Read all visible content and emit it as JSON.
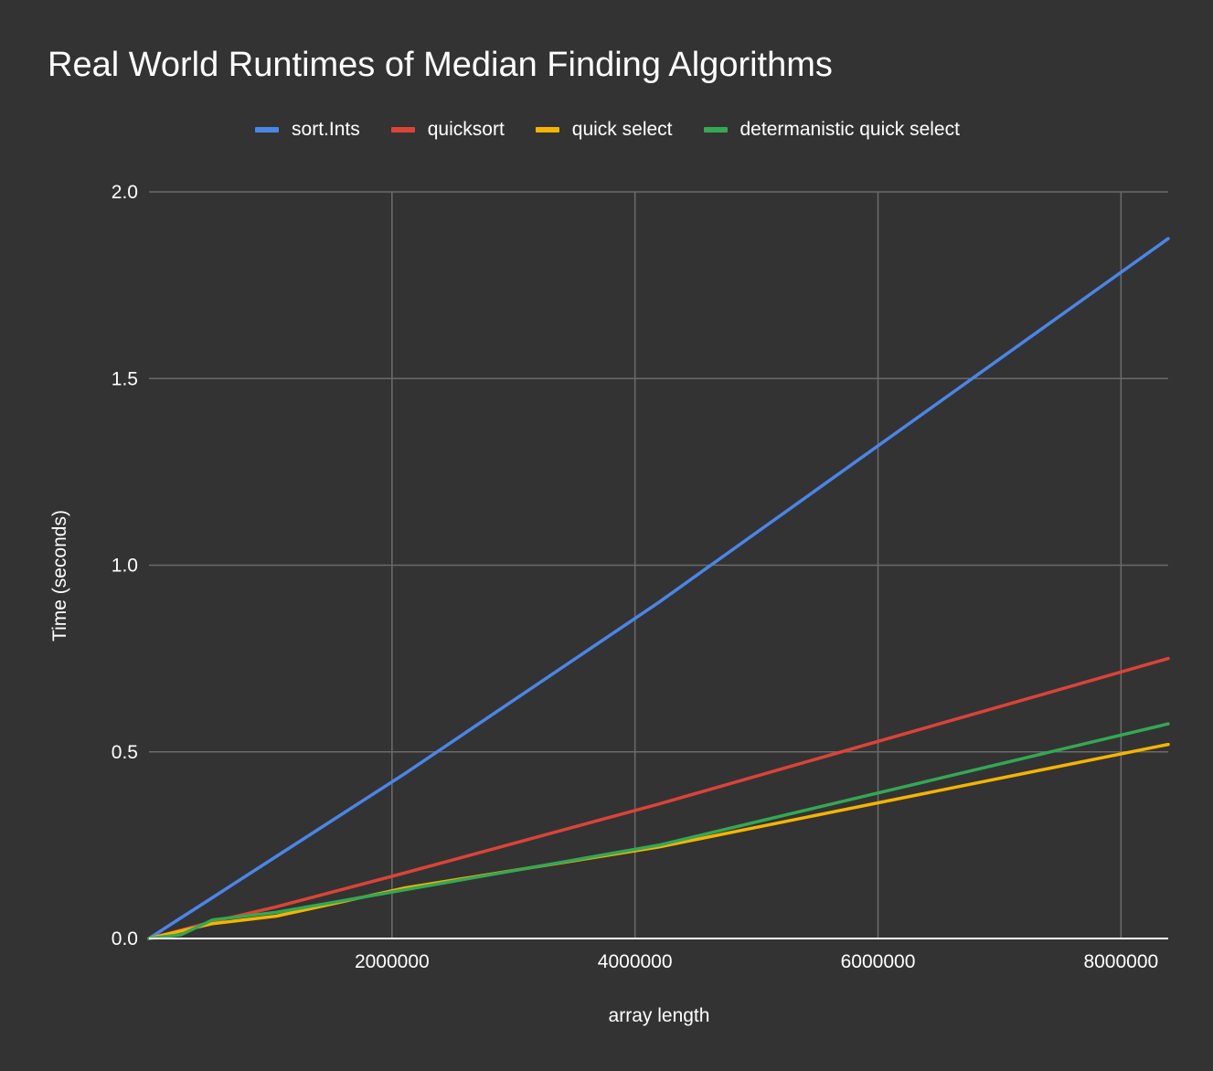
{
  "chart_data": {
    "type": "line",
    "title": "Real World Runtimes of Median Finding Algorithms",
    "xlabel": "array length",
    "ylabel": "Time (seconds)",
    "xlim": [
      0,
      8388608
    ],
    "ylim": [
      0,
      2.0
    ],
    "x_ticks": [
      2000000,
      4000000,
      6000000,
      8000000
    ],
    "x_tick_labels": [
      "2000000",
      "4000000",
      "6000000",
      "8000000"
    ],
    "y_ticks": [
      0,
      0.5,
      1.0,
      1.5,
      2.0
    ],
    "y_tick_labels": [
      "0.0",
      "0.5",
      "1.0",
      "1.5",
      "2.0"
    ],
    "grid": true,
    "legend_position": "top",
    "x": [
      0,
      262144,
      524288,
      1048576,
      2097152,
      4194304,
      8388608
    ],
    "series": [
      {
        "name": "sort.Ints",
        "color": "#4a86e8",
        "values": [
          0,
          0.055,
          0.11,
          0.22,
          0.44,
          0.9,
          1.875
        ]
      },
      {
        "name": "quicksort",
        "color": "#db4437",
        "values": [
          0,
          0.022,
          0.045,
          0.085,
          0.175,
          0.36,
          0.75
        ]
      },
      {
        "name": "quick select",
        "color": "#f4b400",
        "values": [
          0,
          0.02,
          0.04,
          0.06,
          0.135,
          0.245,
          0.52
        ]
      },
      {
        "name": "determanistic quick select",
        "color": "#34a853",
        "values": [
          0,
          0.01,
          0.05,
          0.07,
          0.13,
          0.25,
          0.575
        ]
      }
    ]
  }
}
